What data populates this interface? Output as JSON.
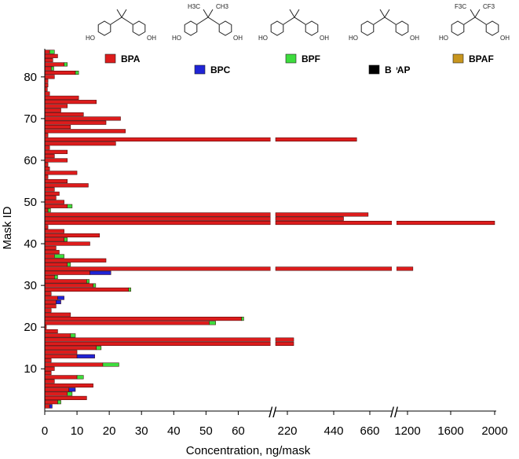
{
  "chart_data": {
    "type": "bar",
    "orientation": "horizontal",
    "stacked": true,
    "xlabel": "Concentration, ng/mask",
    "ylabel": "Mask ID",
    "x_axis_segments": [
      {
        "range": [
          0,
          70
        ],
        "ticks": [
          0,
          10,
          20,
          30,
          40,
          50,
          60
        ]
      },
      {
        "range": [
          70,
          850
        ],
        "ticks": [
          220,
          440,
          660
        ]
      },
      {
        "range": [
          850,
          2000
        ],
        "ticks": [
          1200,
          1600,
          2000
        ]
      }
    ],
    "axis_break_marks": [
      "//",
      "//"
    ],
    "y_ticks": [
      10,
      20,
      30,
      40,
      50,
      60,
      70,
      80
    ],
    "ylim": [
      0,
      86
    ],
    "grid": false,
    "legend_position": "top",
    "series": [
      {
        "name": "BPA",
        "color": "#dd1c1c"
      },
      {
        "name": "BPC",
        "color": "#1f24d6"
      },
      {
        "name": "BPF",
        "color": "#3ddc3d"
      },
      {
        "name": "BPAP",
        "color": "#000000"
      },
      {
        "name": "BPAF",
        "color": "#c8961e"
      }
    ],
    "masks": [
      {
        "id": 1,
        "BPA": 1.5,
        "BPC": 0.8
      },
      {
        "id": 2,
        "BPA": 4,
        "BPF": 1
      },
      {
        "id": 3,
        "BPA": 13
      },
      {
        "id": 4,
        "BPA": 7,
        "BPF": 1.5
      },
      {
        "id": 5,
        "BPA": 7.5,
        "BPC": 2
      },
      {
        "id": 6,
        "BPA": 15
      },
      {
        "id": 7,
        "BPA": 3
      },
      {
        "id": 8,
        "BPA": 10,
        "BPF": 2
      },
      {
        "id": 9,
        "BPA": 2
      },
      {
        "id": 10,
        "BPA": 3
      },
      {
        "id": 11,
        "BPA": 18,
        "BPF": 5
      },
      {
        "id": 12,
        "BPA": 2
      },
      {
        "id": 13,
        "BPA": 10,
        "BPC": 5.5
      },
      {
        "id": 14,
        "BPA": 10
      },
      {
        "id": 15,
        "BPA": 16,
        "BPF": 1.5
      },
      {
        "id": 16,
        "BPA": 250
      },
      {
        "id": 17,
        "BPA": 250
      },
      {
        "id": 18,
        "BPA": 8,
        "BPF": 1.5
      },
      {
        "id": 19,
        "BPA": 4
      },
      {
        "id": 20,
        "BPA": 0.5
      },
      {
        "id": 21,
        "BPA": 51,
        "BPF": 2
      },
      {
        "id": 22,
        "BPA": 61,
        "BPF": 0.7
      },
      {
        "id": 23,
        "BPA": 8
      },
      {
        "id": 24,
        "BPA": 2
      },
      {
        "id": 25,
        "BPA": 3.5
      },
      {
        "id": 26,
        "BPA": 3.5,
        "BPC": 1.5
      },
      {
        "id": 27,
        "BPA": 4,
        "BPC": 2
      },
      {
        "id": 28,
        "BPA": 2
      },
      {
        "id": 29,
        "BPA": 26,
        "BPF": 0.7
      },
      {
        "id": 30,
        "BPA": 15,
        "BPF": 0.8
      },
      {
        "id": 31,
        "BPA": 13,
        "BPF": 0.8
      },
      {
        "id": 32,
        "BPA": 3,
        "BPF": 1
      },
      {
        "id": 33,
        "BPA": 14,
        "BPC": 6.5
      },
      {
        "id": 34,
        "BPA": 1250
      },
      {
        "id": 35,
        "BPA": 7,
        "BPF": 1
      },
      {
        "id": 36,
        "BPA": 19
      },
      {
        "id": 37,
        "BPA": 3,
        "BPF": 3
      },
      {
        "id": 38,
        "BPA": 4.5
      },
      {
        "id": 39,
        "BPA": 3.5
      },
      {
        "id": 40,
        "BPA": 14
      },
      {
        "id": 41,
        "BPA": 6,
        "BPF": 1
      },
      {
        "id": 42,
        "BPA": 17
      },
      {
        "id": 43,
        "BPA": 6
      },
      {
        "id": 44,
        "BPA": 1
      },
      {
        "id": 45,
        "BPA": 2000
      },
      {
        "id": 46,
        "BPA": 500
      },
      {
        "id": 47,
        "BPA": 650
      },
      {
        "id": 48,
        "BPA": 1,
        "BPF": 0.8
      },
      {
        "id": 49,
        "BPA": 7,
        "BPF": 1.5
      },
      {
        "id": 50,
        "BPA": 6
      },
      {
        "id": 51,
        "BPA": 3.5
      },
      {
        "id": 52,
        "BPA": 4.5
      },
      {
        "id": 53,
        "BPA": 3
      },
      {
        "id": 54,
        "BPA": 13.5
      },
      {
        "id": 55,
        "BPA": 7
      },
      {
        "id": 56,
        "BPA": 1
      },
      {
        "id": 57,
        "BPA": 10
      },
      {
        "id": 58,
        "BPA": 1.5
      },
      {
        "id": 59,
        "BPA": 1
      },
      {
        "id": 60,
        "BPA": 7
      },
      {
        "id": 61,
        "BPA": 3
      },
      {
        "id": 62,
        "BPA": 7
      },
      {
        "id": 63,
        "BPA": 1.5
      },
      {
        "id": 64,
        "BPA": 22
      },
      {
        "id": 65,
        "BPA": 580
      },
      {
        "id": 66,
        "BPA": 1
      },
      {
        "id": 67,
        "BPA": 25
      },
      {
        "id": 68,
        "BPA": 8
      },
      {
        "id": 69,
        "BPA": 19
      },
      {
        "id": 70,
        "BPA": 23.5
      },
      {
        "id": 71,
        "BPA": 12
      },
      {
        "id": 72,
        "BPA": 5
      },
      {
        "id": 73,
        "BPA": 7
      },
      {
        "id": 74,
        "BPA": 16
      },
      {
        "id": 75,
        "BPA": 10.5
      },
      {
        "id": 76,
        "BPA": 1.5
      },
      {
        "id": 77,
        "BPA": 0.8
      },
      {
        "id": 78,
        "BPA": 1
      },
      {
        "id": 79,
        "BPA": 1
      },
      {
        "id": 80,
        "BPA": 3
      },
      {
        "id": 81,
        "BPA": 9.5,
        "BPF": 1
      },
      {
        "id": 82,
        "BPA": 2,
        "BPF": 0.8
      },
      {
        "id": 83,
        "BPA": 6,
        "BPF": 1
      },
      {
        "id": 84,
        "BPA": 2.5
      },
      {
        "id": 85,
        "BPA": 4
      },
      {
        "id": 86,
        "BPA": 1.5,
        "BPF": 1.5
      }
    ],
    "structures": [
      {
        "name": "BPA",
        "labels": [
          "HO",
          "OH"
        ]
      },
      {
        "name": "BPC",
        "labels": [
          "H3C",
          "CH3",
          "HO",
          "OH"
        ]
      },
      {
        "name": "BPF",
        "labels": [
          "HO",
          "OH"
        ]
      },
      {
        "name": "BPAP",
        "labels": [
          "HO",
          "OH"
        ]
      },
      {
        "name": "BPAF",
        "labels": [
          "F3C",
          "CF3",
          "HO",
          "OH"
        ]
      }
    ]
  }
}
